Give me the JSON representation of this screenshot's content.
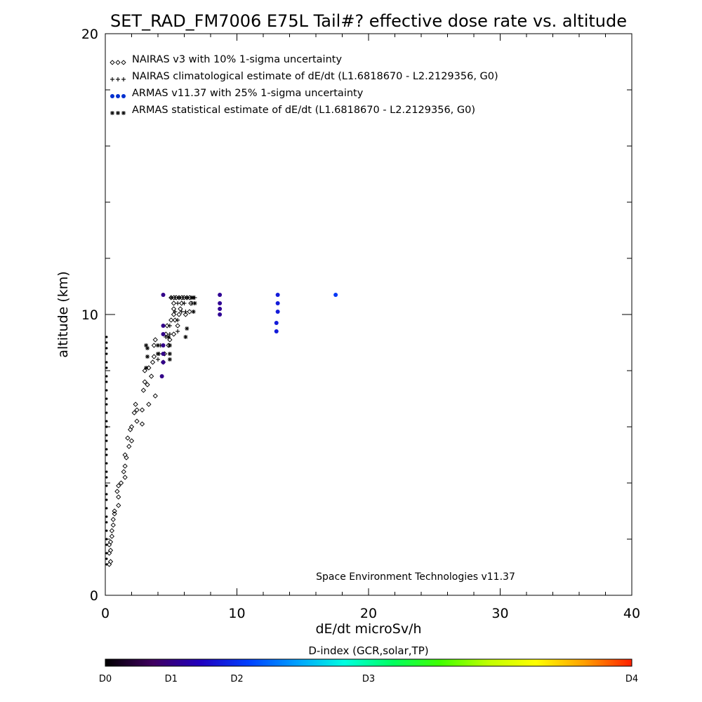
{
  "chart_data": {
    "type": "scatter",
    "title": "SET_RAD_FM7006  E75L Tail#? effective dose rate vs. altitude",
    "xlabel": "dE/dt microSv/h",
    "ylabel": "altitude (km)",
    "xlim": [
      0,
      40
    ],
    "ylim": [
      0,
      20
    ],
    "x_ticks": [
      "0",
      "10",
      "20",
      "30",
      "40"
    ],
    "y_ticks": [
      "0",
      "10",
      "20"
    ],
    "grid": false,
    "legend_position": "top-left",
    "annotation": "Space Environment Technologies v11.37",
    "colorbar": {
      "title": "D-index (GCR,solar,TP)",
      "labels": [
        {
          "text": "D0",
          "value": 0
        },
        {
          "text": "D1",
          "value": 0.125
        },
        {
          "text": "D2",
          "value": 0.25
        },
        {
          "text": "D3",
          "value": 0.5
        },
        {
          "text": "D4",
          "value": 1.0
        }
      ],
      "colors": [
        "#000000",
        "#400060",
        "#2000c0",
        "#0040ff",
        "#00a0ff",
        "#00ffe0",
        "#00ff60",
        "#40ff00",
        "#c0ff00",
        "#ffff00",
        "#ffa000",
        "#ff2000"
      ]
    },
    "series": [
      {
        "name": "NAIRAS v3 with 10% 1-sigma uncertainty",
        "marker": "diamond",
        "color": "#000000",
        "points": [
          [
            0.3,
            1.1
          ],
          [
            0.4,
            1.2
          ],
          [
            0.3,
            1.5
          ],
          [
            0.4,
            1.6
          ],
          [
            0.3,
            1.8
          ],
          [
            0.4,
            1.9
          ],
          [
            0.5,
            2.1
          ],
          [
            0.5,
            2.3
          ],
          [
            0.6,
            2.5
          ],
          [
            0.6,
            2.7
          ],
          [
            0.7,
            2.9
          ],
          [
            0.7,
            3.0
          ],
          [
            1.0,
            3.2
          ],
          [
            1.0,
            3.5
          ],
          [
            0.9,
            3.7
          ],
          [
            1.0,
            3.9
          ],
          [
            1.2,
            4.0
          ],
          [
            1.5,
            4.2
          ],
          [
            1.4,
            4.4
          ],
          [
            1.5,
            4.6
          ],
          [
            1.6,
            4.9
          ],
          [
            1.5,
            5.0
          ],
          [
            1.8,
            5.3
          ],
          [
            2.0,
            5.5
          ],
          [
            1.7,
            5.6
          ],
          [
            1.9,
            5.9
          ],
          [
            2.0,
            6.0
          ],
          [
            2.4,
            6.2
          ],
          [
            2.8,
            6.1
          ],
          [
            2.2,
            6.5
          ],
          [
            2.4,
            6.6
          ],
          [
            2.8,
            6.6
          ],
          [
            2.3,
            6.8
          ],
          [
            3.3,
            6.8
          ],
          [
            3.8,
            7.1
          ],
          [
            2.9,
            7.3
          ],
          [
            3.2,
            7.5
          ],
          [
            3.0,
            7.6
          ],
          [
            3.5,
            7.8
          ],
          [
            3.0,
            8.0
          ],
          [
            3.3,
            8.1
          ],
          [
            3.6,
            8.3
          ],
          [
            4.4,
            8.3
          ],
          [
            3.7,
            8.5
          ],
          [
            4.5,
            8.6
          ],
          [
            3.7,
            8.9
          ],
          [
            4.8,
            8.9
          ],
          [
            3.8,
            9.1
          ],
          [
            4.9,
            9.1
          ],
          [
            4.6,
            9.3
          ],
          [
            5.2,
            9.3
          ],
          [
            4.7,
            9.6
          ],
          [
            5.5,
            9.6
          ],
          [
            5.0,
            9.8
          ],
          [
            5.3,
            9.8
          ],
          [
            5.2,
            10.0
          ],
          [
            5.6,
            10.0
          ],
          [
            6.1,
            10.0
          ],
          [
            5.2,
            10.2
          ],
          [
            5.7,
            10.2
          ],
          [
            6.4,
            10.1
          ],
          [
            5.2,
            10.4
          ],
          [
            5.8,
            10.4
          ],
          [
            6.5,
            10.4
          ],
          [
            5.0,
            10.6
          ],
          [
            5.2,
            10.6
          ],
          [
            5.4,
            10.6
          ],
          [
            5.6,
            10.6
          ],
          [
            5.8,
            10.6
          ],
          [
            6.0,
            10.6
          ],
          [
            6.2,
            10.6
          ],
          [
            6.4,
            10.6
          ]
        ]
      },
      {
        "name": "NAIRAS climatological estimate of dE/dt (L1.6818670 - L2.2129356, G0)",
        "marker": "plus",
        "color": "#000000",
        "points": [
          [
            4.0,
            8.4
          ],
          [
            4.1,
            8.6
          ],
          [
            4.2,
            8.9
          ],
          [
            4.6,
            9.2
          ],
          [
            4.9,
            9.3
          ],
          [
            4.9,
            9.6
          ],
          [
            5.5,
            9.4
          ],
          [
            5.5,
            9.8
          ],
          [
            5.3,
            10.1
          ],
          [
            5.8,
            10.1
          ],
          [
            5.5,
            10.4
          ],
          [
            6.0,
            10.4
          ],
          [
            6.6,
            10.4
          ],
          [
            6.1,
            10.1
          ],
          [
            5.0,
            10.6
          ],
          [
            5.3,
            10.6
          ],
          [
            5.6,
            10.6
          ],
          [
            5.9,
            10.6
          ],
          [
            6.2,
            10.6
          ],
          [
            6.5,
            10.6
          ],
          [
            6.8,
            10.6
          ]
        ]
      },
      {
        "name": "ARMAS v11.37 with 25% 1-sigma uncertainty",
        "marker": "dot",
        "color": "#0030d0",
        "points": [
          {
            "x": 4.4,
            "y": 10.7,
            "d": 0.13
          },
          {
            "x": 4.4,
            "y": 9.6,
            "d": 0.13
          },
          {
            "x": 4.4,
            "y": 9.3,
            "d": 0.13
          },
          {
            "x": 4.4,
            "y": 8.9,
            "d": 0.13
          },
          {
            "x": 4.4,
            "y": 8.6,
            "d": 0.13
          },
          {
            "x": 4.4,
            "y": 8.3,
            "d": 0.13
          },
          {
            "x": 4.3,
            "y": 7.8,
            "d": 0.13
          },
          {
            "x": 8.7,
            "y": 10.7,
            "d": 0.14
          },
          {
            "x": 8.7,
            "y": 10.4,
            "d": 0.14
          },
          {
            "x": 8.7,
            "y": 10.2,
            "d": 0.14
          },
          {
            "x": 8.7,
            "y": 10.0,
            "d": 0.14
          },
          {
            "x": 13.1,
            "y": 10.7,
            "d": 0.22
          },
          {
            "x": 13.1,
            "y": 10.4,
            "d": 0.22
          },
          {
            "x": 13.1,
            "y": 10.1,
            "d": 0.22
          },
          {
            "x": 13.0,
            "y": 9.7,
            "d": 0.22
          },
          {
            "x": 13.0,
            "y": 9.4,
            "d": 0.22
          },
          {
            "x": 17.5,
            "y": 10.7,
            "d": 0.26
          }
        ]
      },
      {
        "name": "ARMAS statistical estimate of dE/dt (L1.6818670 - L2.2129356, G0)",
        "marker": "asterisk",
        "color": "#000000",
        "points": [
          [
            3.1,
            8.1
          ],
          [
            3.2,
            8.5
          ],
          [
            3.2,
            8.8
          ],
          [
            3.1,
            8.9
          ],
          [
            4.0,
            8.6
          ],
          [
            4.0,
            8.9
          ],
          [
            4.9,
            8.4
          ],
          [
            4.9,
            8.6
          ],
          [
            4.9,
            8.9
          ],
          [
            4.8,
            9.2
          ],
          [
            6.1,
            9.2
          ],
          [
            6.2,
            9.5
          ],
          [
            6.7,
            10.1
          ],
          [
            6.8,
            10.4
          ],
          [
            6.6,
            10.6
          ],
          [
            6.7,
            10.6
          ]
        ]
      },
      {
        "name": "",
        "marker": "dot-small",
        "color": "#000000",
        "points": [
          [
            0.1,
            9.2
          ],
          [
            0.1,
            9.0
          ],
          [
            0.1,
            8.8
          ],
          [
            0.1,
            8.6
          ],
          [
            0.1,
            8.3
          ],
          [
            0.1,
            8.1
          ],
          [
            0.1,
            7.8
          ],
          [
            0.1,
            7.6
          ],
          [
            0.1,
            7.3
          ],
          [
            0.1,
            7.0
          ],
          [
            0.1,
            6.8
          ],
          [
            0.1,
            6.5
          ],
          [
            0.1,
            6.2
          ],
          [
            0.1,
            6.0
          ],
          [
            0.1,
            5.7
          ],
          [
            0.1,
            5.5
          ],
          [
            0.1,
            5.2
          ],
          [
            0.1,
            5.0
          ],
          [
            0.1,
            4.7
          ],
          [
            0.1,
            4.4
          ],
          [
            0.1,
            4.2
          ],
          [
            0.1,
            3.9
          ],
          [
            0.1,
            3.6
          ],
          [
            0.1,
            3.4
          ],
          [
            0.1,
            3.1
          ],
          [
            0.1,
            2.8
          ],
          [
            0.1,
            2.6
          ],
          [
            0.1,
            2.3
          ],
          [
            0.1,
            2.0
          ],
          [
            0.1,
            1.8
          ],
          [
            0.1,
            1.5
          ],
          [
            0.1,
            1.3
          ],
          [
            0.1,
            1.1
          ]
        ]
      }
    ]
  }
}
